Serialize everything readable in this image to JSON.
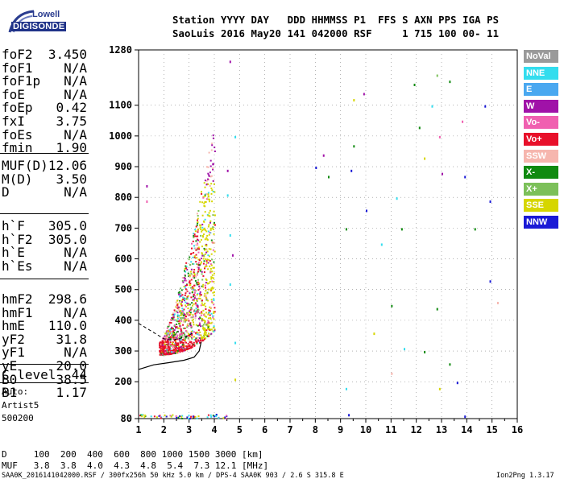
{
  "logo": {
    "line1": "Lowell",
    "line2": "DIGISONDE"
  },
  "header": {
    "row1": "Station YYYY DAY   DDD HHMMSS P1  FFS S AXN PPS IGA PS",
    "row2": "SaoLuis 2016 May20 141 042000 RSF     1 715 100 00- 11"
  },
  "params_a": [
    {
      "name": "foF2",
      "value": "3.450"
    },
    {
      "name": "foF1",
      "value": "N/A"
    },
    {
      "name": "foF1p",
      "value": "N/A"
    },
    {
      "name": "foE",
      "value": "N/A"
    },
    {
      "name": "foEp",
      "value": "0.42"
    },
    {
      "name": "fxI",
      "value": "3.75"
    },
    {
      "name": "foEs",
      "value": "N/A"
    },
    {
      "name": "fmin",
      "value": "1.90"
    }
  ],
  "params_b": [
    {
      "name": "MUF(D)",
      "value": "12.06"
    },
    {
      "name": "M(D)",
      "value": "3.50"
    },
    {
      "name": "D",
      "value": "N/A"
    }
  ],
  "params_c": [
    {
      "name": "h`F",
      "value": "305.0"
    },
    {
      "name": "h`F2",
      "value": "305.0"
    },
    {
      "name": "h`E",
      "value": "N/A"
    },
    {
      "name": "h`Es",
      "value": "N/A"
    }
  ],
  "params_d": [
    {
      "name": "hmF2",
      "value": "298.6"
    },
    {
      "name": "hmF1",
      "value": "N/A"
    },
    {
      "name": "hmE",
      "value": "110.0"
    },
    {
      "name": "yF2",
      "value": "31.8"
    },
    {
      "name": "yF1",
      "value": "N/A"
    },
    {
      "name": "yE",
      "value": "20.0"
    },
    {
      "name": "B0",
      "value": "38.5"
    },
    {
      "name": "B1",
      "value": "1.17"
    }
  ],
  "clevel": {
    "name": "C-level",
    "value": "44"
  },
  "auto": {
    "line1": "Auto:",
    "line2": "Artist5",
    "line3": "500200"
  },
  "legend": [
    {
      "label": "NoVal",
      "color": "#9a9a9a"
    },
    {
      "label": "NNE",
      "color": "#33ddee"
    },
    {
      "label": "E",
      "color": "#4aa8f0"
    },
    {
      "label": "W",
      "color": "#a012a8"
    },
    {
      "label": "Vo-",
      "color": "#f060b0"
    },
    {
      "label": "Vo+",
      "color": "#e8102a"
    },
    {
      "label": "SSW",
      "color": "#f6b6ae"
    },
    {
      "label": "X-",
      "color": "#108a10"
    },
    {
      "label": "X+",
      "color": "#7cc05a"
    },
    {
      "label": "SSE",
      "color": "#d6d600"
    },
    {
      "label": "NNW",
      "color": "#1a1ad6"
    }
  ],
  "muf_table": {
    "row1": "D     100  200  400  600  800 1000 1500 3000 [km]",
    "row2": "MUF   3.8  3.8  4.0  4.3  4.8  5.4  7.3 12.1 [MHz]"
  },
  "footer": {
    "left": "SAA0K_2016141042000.RSF / 300fx256h 50 kHz 5.0 km / DPS-4 SAA0K 903 / 2.6 S 315.8 E",
    "right": "Ion2Png 1.3.17"
  },
  "chart_data": {
    "type": "scatter",
    "title": "",
    "xlabel": "",
    "ylabel": "",
    "xlim": [
      1,
      16
    ],
    "ylim": [
      80,
      1280
    ],
    "x_ticks": [
      1,
      2,
      3,
      4,
      5,
      6,
      7,
      8,
      9,
      10,
      11,
      12,
      13,
      14,
      15,
      16
    ],
    "y_ticks": [
      80,
      200,
      300,
      400,
      500,
      600,
      700,
      800,
      900,
      1000,
      1100,
      1280
    ],
    "ionogram_trace_frequency_range_mhz": [
      1.8,
      4.0
    ],
    "ionogram_trace_height_range_km": [
      290,
      1060
    ],
    "profile_curve": [
      [
        1.0,
        240
      ],
      [
        1.6,
        255
      ],
      [
        2.2,
        262
      ],
      [
        2.8,
        270
      ],
      [
        3.2,
        280
      ],
      [
        3.4,
        300
      ],
      [
        3.48,
        330
      ]
    ],
    "profile_curve_dashed": [
      [
        1.0,
        390
      ],
      [
        1.3,
        375
      ],
      [
        1.7,
        355
      ],
      [
        2.0,
        340
      ],
      [
        2.3,
        335
      ],
      [
        2.6,
        340
      ],
      [
        2.9,
        348
      ],
      [
        3.2,
        360
      ]
    ],
    "sample_points": [
      {
        "f": 4.6,
        "h": 1245,
        "dir": "W"
      },
      {
        "f": 4.8,
        "h": 1000,
        "dir": "NNE"
      },
      {
        "f": 4.5,
        "h": 890,
        "dir": "W"
      },
      {
        "f": 4.5,
        "h": 810,
        "dir": "NNE"
      },
      {
        "f": 4.6,
        "h": 680,
        "dir": "NNE"
      },
      {
        "f": 4.7,
        "h": 615,
        "dir": "W"
      },
      {
        "f": 4.6,
        "h": 520,
        "dir": "NNE"
      },
      {
        "f": 4.8,
        "h": 330,
        "dir": "NNE"
      },
      {
        "f": 4.8,
        "h": 210,
        "dir": "SSE"
      },
      {
        "f": 1.3,
        "h": 840,
        "dir": "W"
      },
      {
        "f": 1.3,
        "h": 790,
        "dir": "Vo-"
      },
      {
        "f": 8.0,
        "h": 900,
        "dir": "NNW"
      },
      {
        "f": 8.3,
        "h": 940,
        "dir": "W"
      },
      {
        "f": 8.5,
        "h": 870,
        "dir": "X-"
      },
      {
        "f": 9.5,
        "h": 1120,
        "dir": "SSE"
      },
      {
        "f": 9.4,
        "h": 890,
        "dir": "NNW"
      },
      {
        "f": 9.5,
        "h": 970,
        "dir": "X-"
      },
      {
        "f": 9.9,
        "h": 1140,
        "dir": "W"
      },
      {
        "f": 9.2,
        "h": 700,
        "dir": "X-"
      },
      {
        "f": 10.0,
        "h": 760,
        "dir": "NNW"
      },
      {
        "f": 10.6,
        "h": 650,
        "dir": "NNE"
      },
      {
        "f": 11.2,
        "h": 800,
        "dir": "NNE"
      },
      {
        "f": 11.4,
        "h": 700,
        "dir": "X-"
      },
      {
        "f": 11.9,
        "h": 1170,
        "dir": "X-"
      },
      {
        "f": 12.1,
        "h": 1030,
        "dir": "X-"
      },
      {
        "f": 12.3,
        "h": 930,
        "dir": "SSE"
      },
      {
        "f": 12.6,
        "h": 1100,
        "dir": "NNE"
      },
      {
        "f": 12.8,
        "h": 1200,
        "dir": "X+"
      },
      {
        "f": 12.9,
        "h": 1000,
        "dir": "Vo-"
      },
      {
        "f": 13.0,
        "h": 880,
        "dir": "W"
      },
      {
        "f": 13.3,
        "h": 1180,
        "dir": "X-"
      },
      {
        "f": 13.8,
        "h": 1050,
        "dir": "Vo-"
      },
      {
        "f": 13.9,
        "h": 870,
        "dir": "NNW"
      },
      {
        "f": 14.3,
        "h": 700,
        "dir": "X-"
      },
      {
        "f": 14.7,
        "h": 1100,
        "dir": "NNW"
      },
      {
        "f": 14.9,
        "h": 790,
        "dir": "NNW"
      },
      {
        "f": 14.9,
        "h": 530,
        "dir": "NNW"
      },
      {
        "f": 15.2,
        "h": 460,
        "dir": "SSW"
      },
      {
        "f": 11.0,
        "h": 450,
        "dir": "X-"
      },
      {
        "f": 11.5,
        "h": 310,
        "dir": "NNE"
      },
      {
        "f": 12.3,
        "h": 300,
        "dir": "X-"
      },
      {
        "f": 12.8,
        "h": 440,
        "dir": "X-"
      },
      {
        "f": 13.3,
        "h": 260,
        "dir": "X-"
      },
      {
        "f": 13.6,
        "h": 200,
        "dir": "NNW"
      },
      {
        "f": 13.9,
        "h": 90,
        "dir": "NNW"
      },
      {
        "f": 9.3,
        "h": 95,
        "dir": "NNW"
      },
      {
        "f": 9.2,
        "h": 180,
        "dir": "NNE"
      },
      {
        "f": 12.9,
        "h": 180,
        "dir": "SSE"
      },
      {
        "f": 10.3,
        "h": 360,
        "dir": "SSE"
      },
      {
        "f": 11.0,
        "h": 230,
        "dir": "SSW"
      }
    ]
  }
}
